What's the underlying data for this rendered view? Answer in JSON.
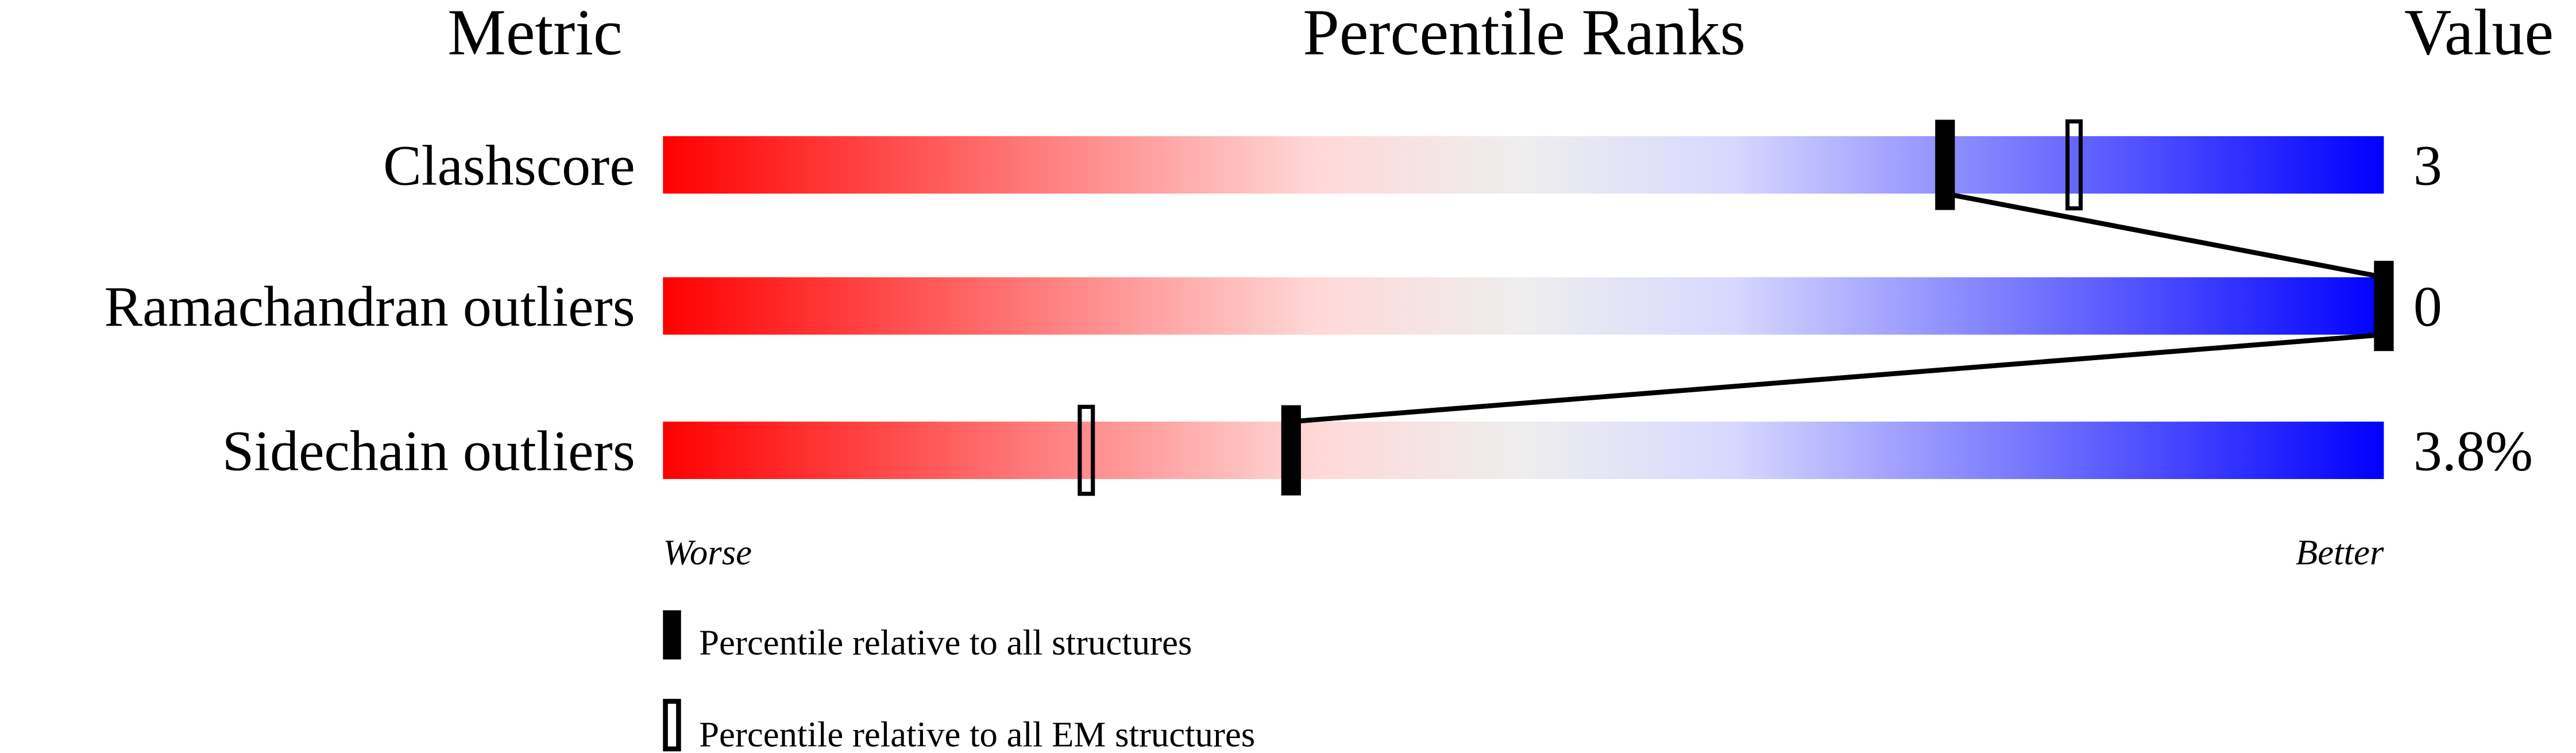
{
  "chart_data": {
    "type": "percentile-bar",
    "headers": {
      "metric": "Metric",
      "ranks": "Percentile Ranks",
      "value": "Value"
    },
    "xlim": [
      0,
      100
    ],
    "rows": [
      {
        "metric": "Clashscore",
        "value": "3",
        "percentile_all": 74.5,
        "percentile_em": 82
      },
      {
        "metric": "Ramachandran outliers",
        "value": "0",
        "percentile_all": 100,
        "percentile_em": 100
      },
      {
        "metric": "Sidechain outliers",
        "value": "3.8%",
        "percentile_all": 36.5,
        "percentile_em": 24.6
      }
    ],
    "axis_labels": {
      "worse": "Worse",
      "better": "Better"
    },
    "legend": [
      {
        "marker": "filled",
        "label": "Percentile relative to all structures"
      },
      {
        "marker": "hollow",
        "label": "Percentile relative to all EM structures"
      }
    ],
    "gradient_colors": [
      "#ff0000",
      "#ffd8d8",
      "#eeeeee",
      "#d8d8ff",
      "#0000ff"
    ]
  }
}
